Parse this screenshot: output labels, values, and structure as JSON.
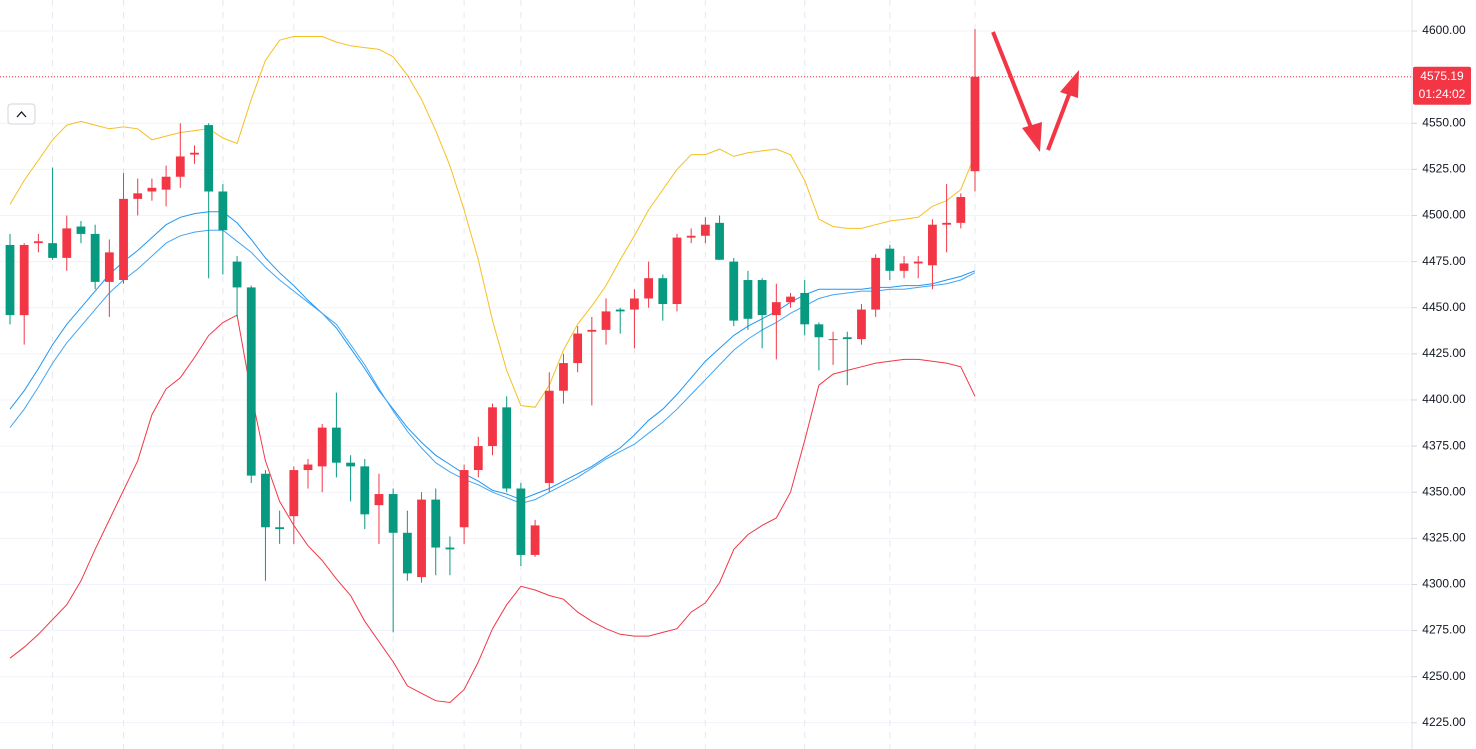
{
  "chart_data": {
    "type": "candlestick",
    "open": [
      4484,
      4446,
      4485,
      4485,
      4477,
      4494,
      4490,
      4464,
      4465,
      4509,
      4513,
      4514,
      4521,
      4533,
      4549,
      4513,
      4475,
      4461,
      4360,
      4331,
      4337,
      4362,
      4364,
      4385,
      4366,
      4364,
      4343,
      4349,
      4328,
      4304,
      4346,
      4320,
      4331,
      4362,
      4375,
      4396,
      4352,
      4316,
      4355,
      4405,
      4420,
      4437,
      4438,
      4449,
      4449,
      4455,
      4466,
      4452,
      4488,
      4489,
      4496,
      4475,
      4465,
      4465,
      4446,
      4453,
      4458,
      4441,
      4433,
      4434,
      4433,
      4449,
      4482,
      4470,
      4474,
      4473,
      4495,
      4496,
      4524
    ],
    "high": [
      4490,
      4485,
      4490,
      4526,
      4500,
      4497,
      4495,
      4487,
      4523,
      4520,
      4520,
      4527,
      4550,
      4538,
      4550,
      4517,
      4478,
      4462,
      4362,
      4340,
      4364,
      4368,
      4387,
      4404,
      4370,
      4368,
      4360,
      4352,
      4340,
      4350,
      4352,
      4326,
      4365,
      4380,
      4398,
      4402,
      4355,
      4335,
      4415,
      4425,
      4440,
      4445,
      4455,
      4450,
      4460,
      4475,
      4468,
      4490,
      4493,
      4499,
      4500,
      4477,
      4470,
      4466,
      4463,
      4458,
      4465,
      4442,
      4437,
      4437,
      4452,
      4479,
      4484,
      4478,
      4478,
      4498,
      4517,
      4512,
      4601
    ],
    "low": [
      4441,
      4430,
      4480,
      4476,
      4470,
      4485,
      4460,
      4445,
      4463,
      4500,
      4508,
      4505,
      4515,
      4528,
      4466,
      4468,
      4445,
      4355,
      4302,
      4322,
      4322,
      4352,
      4350,
      4358,
      4345,
      4330,
      4322,
      4274,
      4302,
      4301,
      4305,
      4305,
      4322,
      4358,
      4370,
      4350,
      4310,
      4315,
      4350,
      4398,
      4415,
      4397,
      4430,
      4436,
      4428,
      4450,
      4443,
      4448,
      4485,
      4485,
      4476,
      4440,
      4438,
      4428,
      4422,
      4450,
      4435,
      4416,
      4419,
      4408,
      4430,
      4445,
      4465,
      4466,
      4466,
      4460,
      4480,
      4493,
      4513
    ],
    "close": [
      4446,
      4484,
      4486,
      4477,
      4493,
      4490,
      4464,
      4480,
      4509,
      4512,
      4515,
      4521,
      4532,
      4534,
      4513,
      4492,
      4461,
      4359,
      4331,
      4330,
      4362,
      4365,
      4385,
      4366,
      4364,
      4338,
      4349,
      4328,
      4306,
      4346,
      4320,
      4319,
      4362,
      4375,
      4396,
      4352,
      4316,
      4332,
      4405,
      4420,
      4436,
      4438,
      4448,
      4448,
      4455,
      4466,
      4452,
      4488,
      4489,
      4495,
      4476,
      4443,
      4444,
      4446,
      4453,
      4456,
      4441,
      4434,
      4433,
      4433,
      4449,
      4477,
      4470,
      4474,
      4475,
      4495,
      4496,
      4510,
      4575.19
    ],
    "up_color": "#f23645",
    "down_color": "#089981",
    "overlays": [
      {
        "color": "#f5c021",
        "values": [
          4506,
          4519,
          4530,
          4541,
          4549,
          4551,
          4549,
          4547,
          4548,
          4547,
          4541,
          4543,
          4545,
          4546,
          4547,
          4542,
          4539,
          4563,
          4584,
          4595,
          4597,
          4597,
          4597,
          4594,
          4592,
          4591,
          4590,
          4586,
          4576,
          4563,
          4546,
          4527,
          4503,
          4476,
          4443,
          4416,
          4397,
          4396,
          4408,
          4427,
          4441,
          4451,
          4462,
          4476,
          4489,
          4503,
          4514,
          4525,
          4533,
          4533,
          4536,
          4532,
          4534,
          4535,
          4536,
          4533,
          4519,
          4498,
          4494,
          4493,
          4493,
          4495,
          4497,
          4498,
          4499,
          4505,
          4508,
          4514,
          4533
        ]
      },
      {
        "color": "#f23645",
        "values": [
          4260,
          4266,
          4273,
          4281,
          4289,
          4302,
          4319,
          4335,
          4351,
          4367,
          4392,
          4406,
          4412,
          4423,
          4435,
          4442,
          4446,
          4403,
          4367,
          4345,
          4332,
          4321,
          4313,
          4303,
          4294,
          4280,
          4269,
          4258,
          4245,
          4241,
          4237,
          4236,
          4243,
          4258,
          4276,
          4289,
          4299,
          4297,
          4294,
          4292,
          4285,
          4280,
          4276,
          4273,
          4272,
          4272,
          4274,
          4276,
          4285,
          4290,
          4301,
          4319,
          4327,
          4332,
          4336,
          4350,
          4378,
          4408,
          4414,
          4416,
          4418,
          4420,
          4421,
          4422,
          4422,
          4421,
          4420,
          4418,
          4402
        ]
      },
      {
        "color": "#2196f3",
        "values": [
          4395,
          4405,
          4417,
          4430,
          4441,
          4450,
          4459,
          4468,
          4475,
          4481,
          4488,
          4495,
          4499,
          4501,
          4502,
          4502,
          4496,
          4487,
          4477,
          4469,
          4462,
          4454,
          4447,
          4439,
          4428,
          4417,
          4405,
          4395,
          4385,
          4377,
          4370,
          4365,
          4360,
          4356,
          4351,
          4349,
          4346,
          4349,
          4352,
          4356,
          4360,
          4364,
          4369,
          4374,
          4381,
          4389,
          4395,
          4403,
          4412,
          4421,
          4428,
          4435,
          4440,
          4444,
          4448,
          4453,
          4457,
          4460,
          4460,
          4460,
          4460,
          4461,
          4461,
          4462,
          4462,
          4463,
          4465,
          4467,
          4470
        ]
      },
      {
        "color": "#42a5f5",
        "values": [
          4385,
          4395,
          4407,
          4420,
          4431,
          4440,
          4449,
          4458,
          4465,
          4471,
          4478,
          4485,
          4489,
          4491,
          4492,
          4492,
          4486,
          4480,
          4472,
          4465,
          4459,
          4453,
          4447,
          4441,
          4430,
          4419,
          4406,
          4394,
          4383,
          4374,
          4366,
          4361,
          4357,
          4354,
          4350,
          4347,
          4344,
          4346,
          4350,
          4354,
          4358,
          4363,
          4368,
          4372,
          4376,
          4382,
          4388,
          4395,
          4403,
          4411,
          4419,
          4427,
          4433,
          4438,
          4442,
          4447,
          4451,
          4455,
          4457,
          4458,
          4459,
          4459,
          4460,
          4460,
          4461,
          4462,
          4463,
          4465,
          4469
        ]
      }
    ],
    "ylim": [
      4210.8,
      4616.8
    ],
    "yticks": [
      {
        "value": 4225,
        "label": "4225.00"
      },
      {
        "value": 4250,
        "label": "4250.00"
      },
      {
        "value": 4275,
        "label": "4275.00"
      },
      {
        "value": 4300,
        "label": "4300.00"
      },
      {
        "value": 4325,
        "label": "4325.00"
      },
      {
        "value": 4350,
        "label": "4350.00"
      },
      {
        "value": 4375,
        "label": "4375.00"
      },
      {
        "value": 4400,
        "label": "4400.00"
      },
      {
        "value": 4425,
        "label": "4425.00"
      },
      {
        "value": 4450,
        "label": "4450.00"
      },
      {
        "value": 4475,
        "label": "4475.00"
      },
      {
        "value": 4500,
        "label": "4500.00"
      },
      {
        "value": 4525,
        "label": "4525.00"
      },
      {
        "value": 4550,
        "label": "4550.00"
      },
      {
        "value": 4575,
        "label": "4575.00"
      },
      {
        "value": 4600,
        "label": "4600.00"
      }
    ],
    "grid": true,
    "countdown": "01:24:02"
  }
}
